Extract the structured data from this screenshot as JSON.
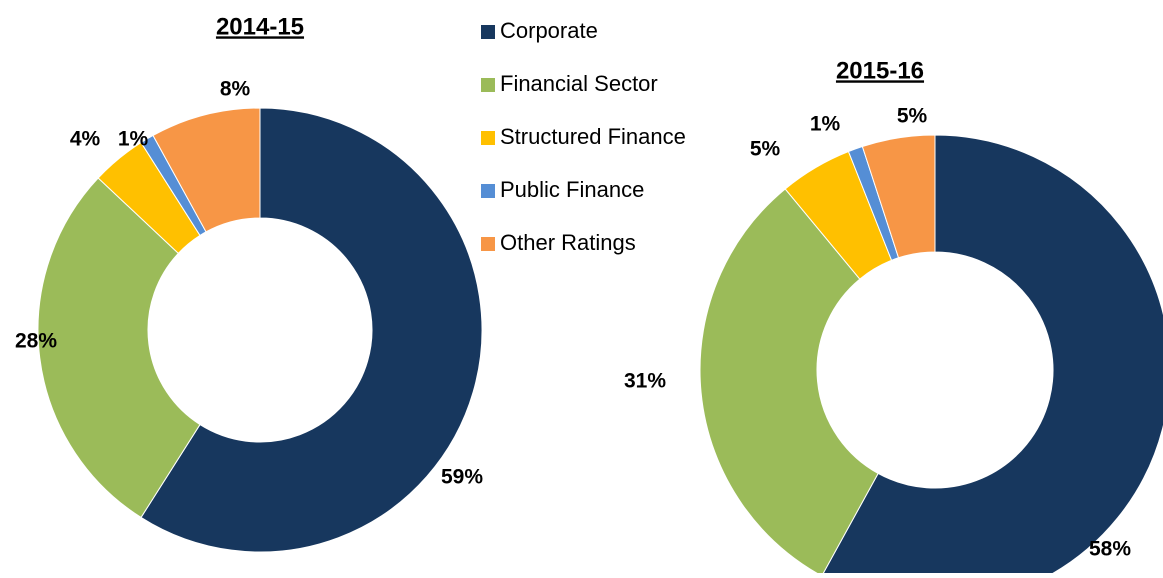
{
  "legend": {
    "items": [
      "Corporate",
      "Financial Sector",
      "Structured Finance",
      "Public Finance",
      "Other Ratings"
    ],
    "colors": [
      "#17375e",
      "#9bbb59",
      "#ffc000",
      "#558ed5",
      "#f79646"
    ]
  },
  "chart_data": [
    {
      "type": "donut",
      "title": "2014-15",
      "values": [
        59,
        28,
        4,
        1,
        8
      ],
      "value_labels": [
        "59%",
        "28%",
        "4%",
        "1%",
        "8%"
      ]
    },
    {
      "type": "donut",
      "title": "2015-16",
      "values": [
        58,
        31,
        5,
        1,
        5
      ],
      "value_labels": [
        "58%",
        "31%",
        "5%",
        "1%",
        "5%"
      ]
    }
  ]
}
